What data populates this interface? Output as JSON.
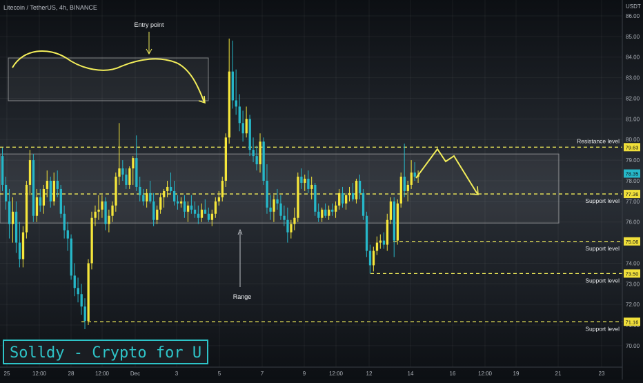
{
  "chart_data": {
    "type": "candlestick",
    "title": "Litecoin / TetherUS, 4h, BINANCE",
    "currency": "USDT",
    "y_ticks": [
      70.0,
      71.0,
      72.0,
      73.0,
      74.0,
      75.0,
      76.0,
      77.0,
      78.0,
      79.0,
      80.0,
      81.0,
      82.0,
      83.0,
      84.0,
      85.0,
      86.0
    ],
    "ylim": [
      69.3,
      86.6
    ],
    "x_ticks": [
      "25",
      "12:00",
      "28",
      "12:00",
      "Dec",
      "3",
      "5",
      "7",
      "9",
      "12:00",
      "12",
      "14",
      "16",
      "12:00",
      "19",
      "21",
      "23"
    ],
    "colors": {
      "up": "#f5e63b",
      "down": "#26b8c9",
      "annotation": "#f3ee5a",
      "level": "#f3ee5a"
    },
    "levels": [
      {
        "name": "Resistance level",
        "value": 79.63,
        "label": "79.63"
      },
      {
        "name": "Support level",
        "value": 77.36,
        "label": "77.36"
      },
      {
        "name": "Support level",
        "value": 75.06,
        "label": "75.06"
      },
      {
        "name": "Support level",
        "value": 73.5,
        "label": "73.50"
      },
      {
        "name": "Support level",
        "value": 71.16,
        "label": "71.16"
      }
    ],
    "last_price": {
      "value": 78.35,
      "label": "78.35"
    },
    "range_box": {
      "y_top": 79.3,
      "y_bottom": 75.95
    },
    "annotations": {
      "entry_point": "Entry point",
      "range": "Range"
    },
    "candles": [
      [
        79.2,
        79.6,
        77.5,
        77.8
      ],
      [
        77.8,
        78.2,
        76.6,
        77.0
      ],
      [
        77.0,
        77.6,
        75.2,
        75.9
      ],
      [
        75.9,
        77.2,
        75.0,
        76.5
      ],
      [
        76.5,
        77.0,
        74.5,
        75.0
      ],
      [
        75.0,
        76.0,
        73.8,
        74.2
      ],
      [
        74.2,
        75.8,
        73.8,
        75.5
      ],
      [
        75.5,
        78.0,
        75.2,
        77.8
      ],
      [
        77.8,
        79.5,
        77.3,
        79.0
      ],
      [
        79.0,
        79.3,
        76.0,
        76.3
      ],
      [
        76.3,
        77.6,
        76.0,
        77.2
      ],
      [
        77.2,
        77.6,
        76.5,
        76.8
      ],
      [
        76.8,
        77.8,
        76.4,
        77.6
      ],
      [
        77.6,
        78.5,
        77.2,
        78.0
      ],
      [
        78.0,
        78.2,
        76.7,
        77.0
      ],
      [
        77.0,
        78.4,
        76.8,
        78.0
      ],
      [
        78.0,
        78.5,
        77.2,
        77.6
      ],
      [
        77.6,
        77.8,
        76.2,
        76.4
      ],
      [
        76.4,
        76.8,
        75.2,
        75.6
      ],
      [
        75.6,
        76.0,
        74.6,
        75.2
      ],
      [
        75.2,
        75.4,
        73.2,
        73.4
      ],
      [
        73.4,
        74.0,
        72.4,
        72.8
      ],
      [
        72.8,
        73.3,
        72.1,
        72.5
      ],
      [
        72.5,
        73.0,
        71.5,
        71.9
      ],
      [
        71.9,
        72.3,
        70.8,
        71.2
      ],
      [
        71.2,
        74.2,
        71.0,
        74.0
      ],
      [
        74.0,
        76.5,
        73.7,
        76.2
      ],
      [
        76.2,
        76.8,
        75.8,
        76.5
      ],
      [
        76.5,
        77.3,
        76.1,
        76.6
      ],
      [
        76.6,
        77.3,
        76.2,
        77.0
      ],
      [
        77.0,
        77.2,
        75.6,
        75.9
      ],
      [
        75.9,
        76.6,
        75.5,
        76.3
      ],
      [
        76.3,
        77.0,
        76.0,
        76.8
      ],
      [
        76.8,
        78.4,
        76.5,
        78.2
      ],
      [
        78.2,
        80.8,
        77.8,
        78.6
      ],
      [
        78.6,
        79.0,
        78.0,
        78.3
      ],
      [
        78.3,
        78.6,
        77.6,
        77.8
      ],
      [
        77.8,
        78.7,
        77.6,
        78.6
      ],
      [
        78.6,
        79.2,
        77.8,
        79.1
      ],
      [
        79.1,
        80.2,
        77.5,
        77.7
      ],
      [
        77.7,
        78.2,
        77.0,
        77.3
      ],
      [
        77.3,
        77.6,
        76.8,
        77.0
      ],
      [
        77.0,
        77.6,
        76.7,
        77.4
      ],
      [
        77.4,
        78.0,
        76.9,
        77.0
      ],
      [
        77.0,
        77.4,
        75.8,
        76.1
      ],
      [
        76.1,
        76.8,
        75.9,
        76.6
      ],
      [
        76.6,
        77.4,
        76.4,
        77.2
      ],
      [
        77.2,
        77.6,
        76.7,
        77.5
      ],
      [
        77.5,
        78.0,
        77.2,
        77.7
      ],
      [
        77.7,
        78.4,
        77.4,
        77.5
      ],
      [
        77.5,
        78.0,
        76.8,
        77.0
      ],
      [
        77.0,
        77.3,
        76.6,
        76.9
      ],
      [
        76.9,
        77.2,
        76.7,
        77.0
      ],
      [
        77.0,
        77.3,
        76.2,
        76.5
      ],
      [
        76.5,
        77.0,
        76.0,
        76.8
      ],
      [
        76.8,
        77.3,
        76.4,
        76.6
      ],
      [
        76.6,
        77.0,
        76.2,
        76.4
      ],
      [
        76.4,
        76.8,
        75.9,
        76.2
      ],
      [
        76.2,
        76.9,
        76.0,
        76.6
      ],
      [
        76.6,
        77.1,
        76.4,
        76.4
      ],
      [
        76.4,
        76.7,
        76.0,
        76.1
      ],
      [
        76.1,
        76.6,
        75.8,
        76.4
      ],
      [
        76.4,
        77.2,
        76.2,
        77.0
      ],
      [
        77.0,
        77.5,
        76.8,
        77.2
      ],
      [
        77.2,
        78.2,
        77.0,
        78.0
      ],
      [
        78.0,
        80.3,
        77.7,
        80.1
      ],
      [
        80.1,
        84.9,
        79.8,
        83.3
      ],
      [
        83.3,
        84.8,
        81.5,
        81.9
      ],
      [
        81.9,
        83.4,
        81.2,
        81.6
      ],
      [
        81.6,
        82.2,
        80.4,
        80.8
      ],
      [
        80.8,
        81.4,
        79.9,
        80.3
      ],
      [
        80.3,
        81.6,
        80.1,
        81.0
      ],
      [
        81.0,
        81.2,
        79.2,
        79.5
      ],
      [
        79.5,
        80.1,
        78.9,
        79.2
      ],
      [
        79.2,
        79.7,
        78.5,
        78.8
      ],
      [
        78.8,
        80.3,
        78.4,
        79.9
      ],
      [
        79.9,
        80.1,
        77.8,
        78.0
      ],
      [
        78.0,
        78.8,
        76.4,
        76.7
      ],
      [
        76.7,
        77.3,
        76.1,
        76.5
      ],
      [
        76.5,
        77.3,
        76.0,
        77.1
      ],
      [
        77.1,
        77.6,
        76.6,
        76.9
      ],
      [
        76.9,
        77.3,
        76.1,
        76.3
      ],
      [
        76.3,
        76.8,
        75.8,
        76.1
      ],
      [
        76.1,
        76.7,
        75.0,
        75.5
      ],
      [
        75.5,
        76.1,
        75.2,
        75.9
      ],
      [
        75.9,
        76.7,
        75.6,
        76.2
      ],
      [
        76.2,
        78.4,
        76.0,
        78.2
      ],
      [
        78.2,
        78.6,
        77.6,
        77.9
      ],
      [
        77.9,
        78.3,
        77.5,
        78.1
      ],
      [
        78.1,
        78.5,
        77.4,
        77.6
      ],
      [
        77.6,
        78.2,
        77.1,
        77.8
      ],
      [
        77.8,
        77.9,
        76.3,
        76.5
      ],
      [
        76.5,
        76.9,
        76.0,
        76.2
      ],
      [
        76.2,
        76.7,
        76.0,
        76.6
      ],
      [
        76.6,
        76.9,
        76.2,
        76.3
      ],
      [
        76.3,
        76.8,
        76.1,
        76.6
      ],
      [
        76.6,
        76.9,
        76.3,
        76.5
      ],
      [
        76.5,
        77.0,
        76.2,
        76.8
      ],
      [
        76.8,
        77.6,
        76.6,
        77.4
      ],
      [
        77.4,
        77.7,
        76.7,
        76.9
      ],
      [
        76.9,
        77.4,
        76.6,
        77.3
      ],
      [
        77.3,
        77.7,
        77.0,
        77.4
      ],
      [
        77.4,
        77.9,
        77.0,
        77.1
      ],
      [
        77.1,
        78.1,
        76.9,
        78.0
      ],
      [
        78.0,
        78.3,
        77.1,
        77.4
      ],
      [
        77.4,
        77.6,
        76.1,
        76.3
      ],
      [
        76.3,
        76.5,
        74.3,
        74.6
      ],
      [
        74.6,
        74.9,
        73.5,
        73.9
      ],
      [
        73.9,
        74.8,
        73.6,
        74.6
      ],
      [
        74.6,
        75.3,
        74.4,
        75.0
      ],
      [
        75.0,
        75.4,
        74.7,
        75.1
      ],
      [
        75.1,
        75.5,
        74.7,
        74.9
      ],
      [
        74.9,
        76.4,
        74.6,
        76.1
      ],
      [
        76.1,
        77.2,
        75.9,
        77.0
      ],
      [
        77.0,
        77.2,
        74.3,
        75.1
      ],
      [
        75.1,
        77.1,
        74.9,
        76.9
      ],
      [
        76.9,
        78.4,
        76.7,
        78.2
      ],
      [
        78.2,
        79.8,
        77.2,
        77.5
      ],
      [
        77.5,
        78.0,
        77.0,
        77.8
      ],
      [
        77.8,
        79.0,
        77.6,
        78.4
      ],
      [
        78.4,
        78.9,
        78.0,
        78.2
      ],
      [
        78.2,
        78.5,
        77.9,
        78.3
      ]
    ]
  },
  "watermark": "Solldy - Crypto for U"
}
